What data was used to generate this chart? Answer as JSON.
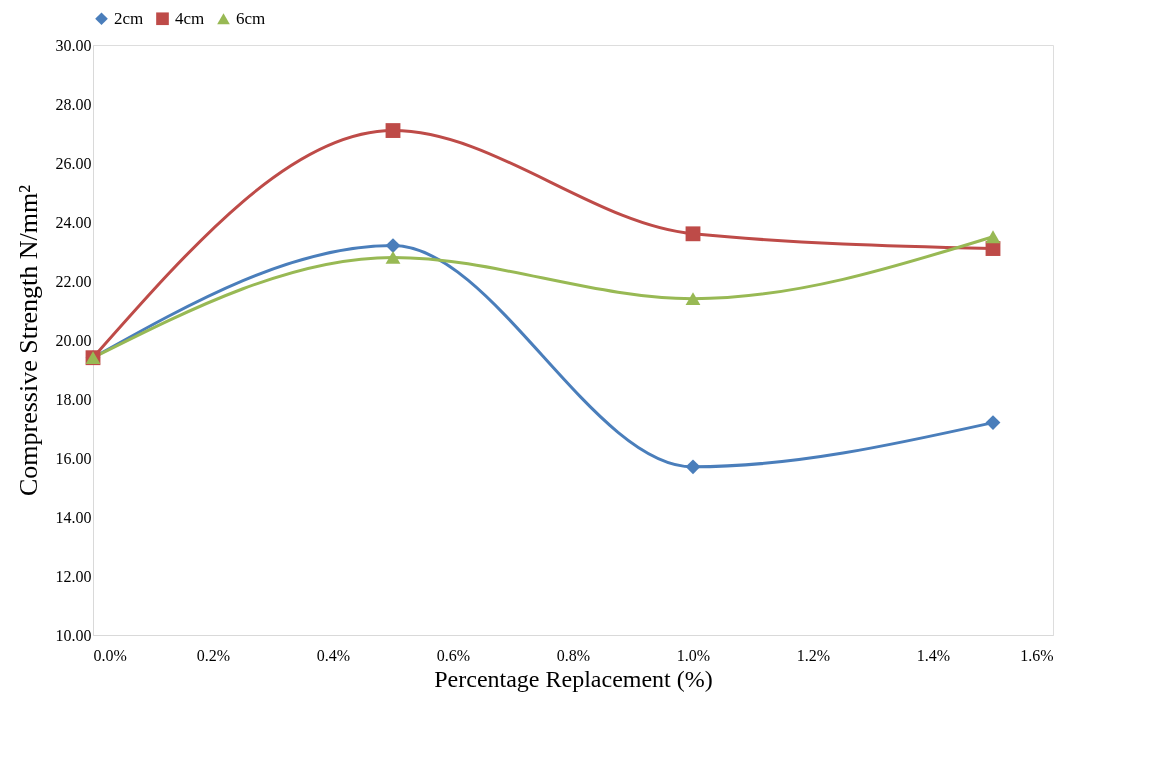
{
  "chart_data": {
    "type": "line",
    "xlabel": "Percentage Replacement (%)",
    "ylabel": "Compressive Strength N/mm²",
    "x": [
      0,
      0.5,
      1.0,
      1.5
    ],
    "series": [
      {
        "name": "2cm",
        "color": "#4a7ebb",
        "marker": "diamond",
        "values": [
          19.4,
          23.2,
          15.7,
          17.2
        ]
      },
      {
        "name": "4cm",
        "color": "#be4b48",
        "marker": "square",
        "values": [
          19.4,
          27.1,
          23.6,
          23.1
        ]
      },
      {
        "name": "6cm",
        "color": "#98b954",
        "marker": "triangle",
        "values": [
          19.4,
          22.8,
          21.4,
          23.5
        ]
      }
    ],
    "xlim": [
      0,
      1.6
    ],
    "xticks": [
      {
        "value": 0,
        "label": "0.0%"
      },
      {
        "value": 0.2,
        "label": "0.2%"
      },
      {
        "value": 0.4,
        "label": "0.4%"
      },
      {
        "value": 0.6,
        "label": "0.6%"
      },
      {
        "value": 0.8,
        "label": "0.8%"
      },
      {
        "value": 1.0,
        "label": "1.0%"
      },
      {
        "value": 1.2,
        "label": "1.2%"
      },
      {
        "value": 1.4,
        "label": "1.4%"
      },
      {
        "value": 1.6,
        "label": "1.6%"
      }
    ],
    "ylim": [
      10,
      30
    ],
    "yticks": [
      {
        "value": 10,
        "label": "10.00"
      },
      {
        "value": 12,
        "label": "12.00"
      },
      {
        "value": 14,
        "label": "14.00"
      },
      {
        "value": 16,
        "label": "16.00"
      },
      {
        "value": 18,
        "label": "18.00"
      },
      {
        "value": 20,
        "label": "20.00"
      },
      {
        "value": 22,
        "label": "22.00"
      },
      {
        "value": 24,
        "label": "24.00"
      },
      {
        "value": 26,
        "label": "26.00"
      },
      {
        "value": 28,
        "label": "28.00"
      },
      {
        "value": 30,
        "label": "30.00"
      }
    ],
    "grid": false,
    "legend": "top",
    "line_style": "solid"
  }
}
